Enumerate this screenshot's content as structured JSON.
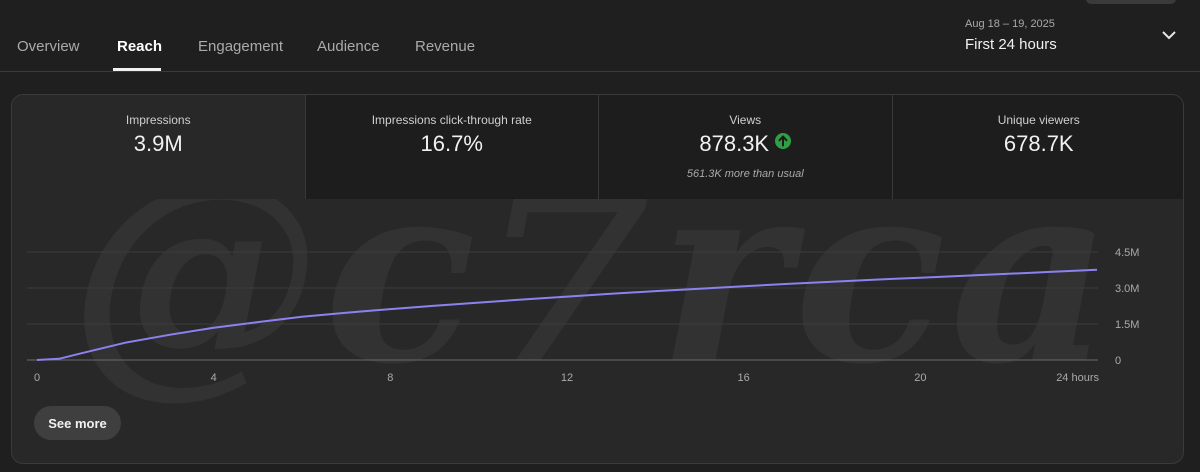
{
  "tabs": [
    {
      "label": "Overview",
      "active": false
    },
    {
      "label": "Reach",
      "active": true
    },
    {
      "label": "Engagement",
      "active": false
    },
    {
      "label": "Audience",
      "active": false
    },
    {
      "label": "Revenue",
      "active": false
    }
  ],
  "date_range": {
    "dates": "Aug 18 – 19, 2025",
    "period": "First 24 hours",
    "icon": "chevron-down-icon"
  },
  "metrics": [
    {
      "label": "Impressions",
      "value": "3.9M",
      "sub": ""
    },
    {
      "label": "Impressions click-through rate",
      "value": "16.7%",
      "sub": ""
    },
    {
      "label": "Views",
      "value": "878.3K",
      "sub": "561.3K more than usual",
      "trend": "up"
    },
    {
      "label": "Unique viewers",
      "value": "678.7K",
      "sub": ""
    }
  ],
  "watermark": "@c7rca",
  "see_more_label": "See more",
  "colors": {
    "line": "#8b82f0",
    "trend_up": "#2ea043",
    "background": "#1f1f1f",
    "card": "#282828"
  },
  "chart_data": {
    "type": "line",
    "x_ticks": [
      "0",
      "4",
      "8",
      "12",
      "16",
      "20",
      "24 hours"
    ],
    "y_ticks": [
      "0",
      "1.5M",
      "3.0M",
      "4.5M"
    ],
    "xlim": [
      0,
      24
    ],
    "ylim": [
      0,
      4.5
    ],
    "y_unit": "M",
    "grid": true,
    "series": [
      {
        "x": [
          0,
          0.5,
          1,
          2,
          3,
          4,
          5,
          6,
          7,
          8,
          9,
          10,
          11,
          12,
          13,
          14,
          15,
          16,
          17,
          18,
          19,
          20,
          21,
          22,
          23,
          24
        ],
        "values": [
          0,
          0.05,
          0.28,
          0.72,
          1.05,
          1.34,
          1.58,
          1.8,
          1.97,
          2.12,
          2.26,
          2.39,
          2.52,
          2.64,
          2.76,
          2.87,
          2.97,
          3.07,
          3.17,
          3.26,
          3.35,
          3.43,
          3.51,
          3.59,
          3.68,
          3.76
        ]
      }
    ]
  }
}
